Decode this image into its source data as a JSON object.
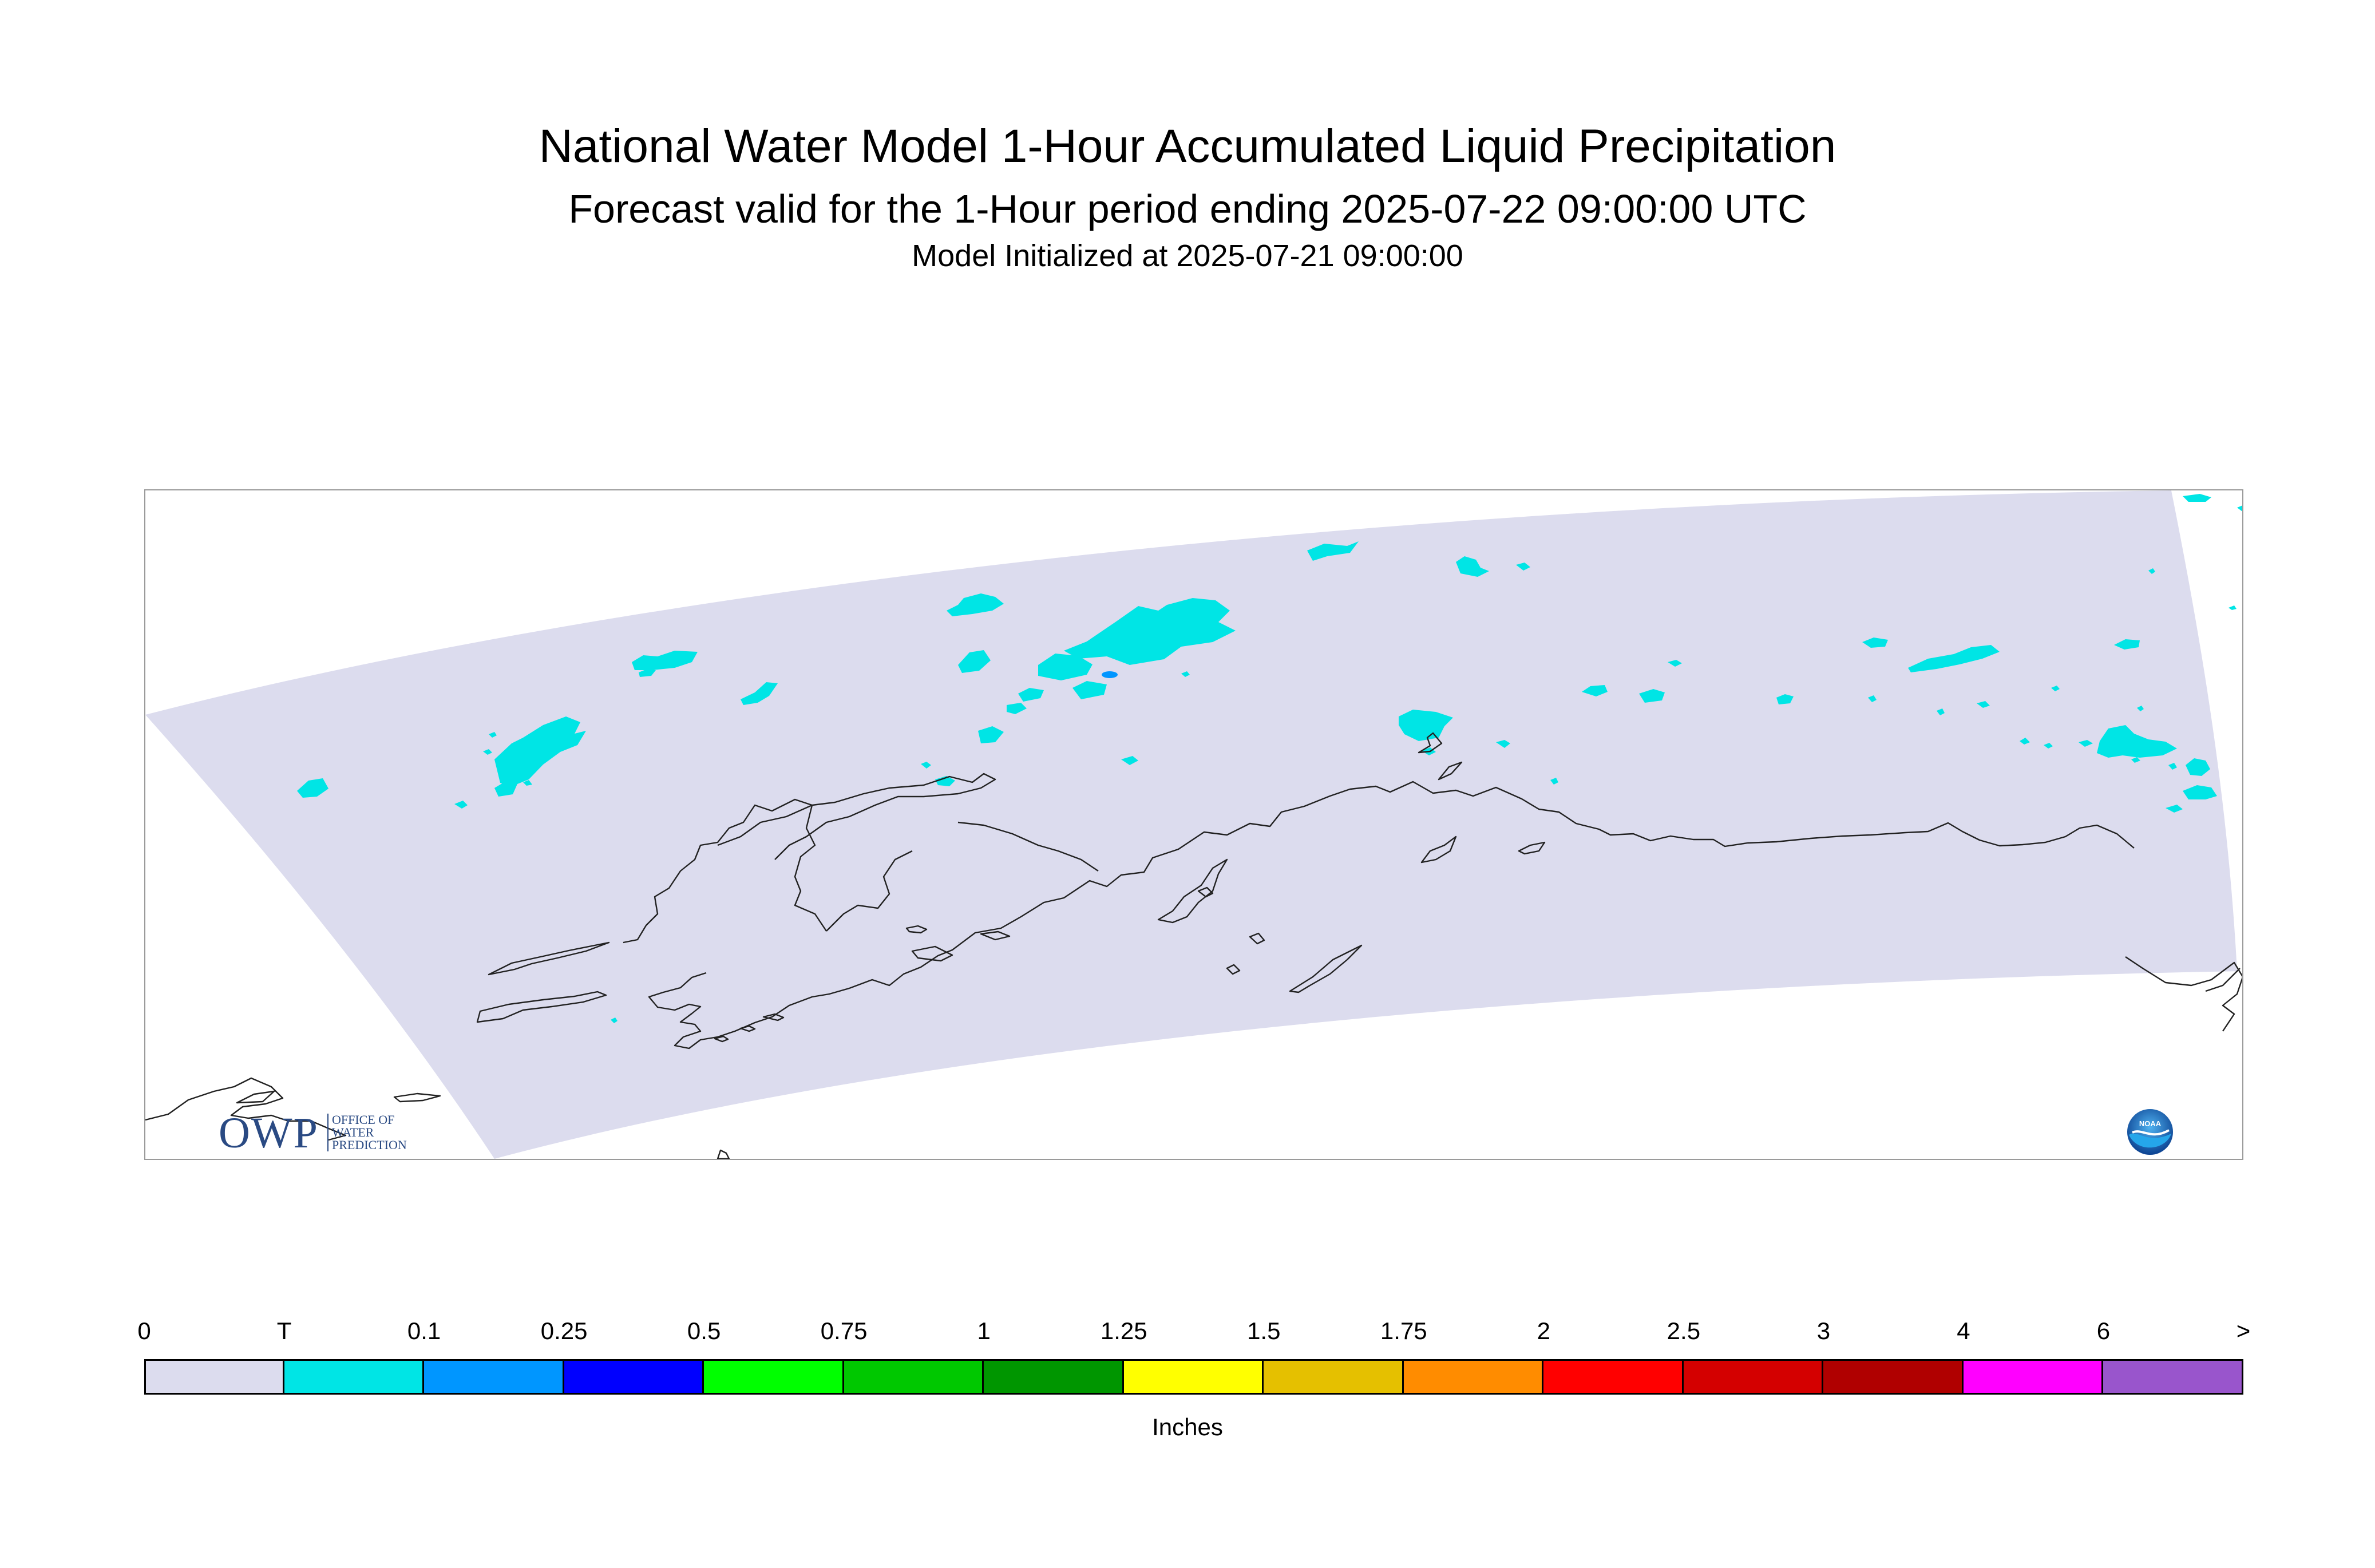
{
  "title": {
    "line1": "National Water Model 1-Hour Accumulated Liquid Precipitation",
    "line2": "Forecast valid for the 1-Hour period ending 2025-07-22 09:00:00 UTC",
    "line3": "Model Initialized at 2025-07-21 09:00:00"
  },
  "map": {
    "domain_fill_color": "#dcdcee",
    "coastline_color": "#222222",
    "precip_trace_color": "#00e5e5",
    "precip_01_color": "#0096ff"
  },
  "logos": {
    "owp": {
      "letters": "OWP",
      "line1": "OFFICE OF",
      "line2": "WATER",
      "line3": "PREDICTION"
    },
    "noaa": {
      "text": "NOAA",
      "icon": "noaa-logo-icon"
    }
  },
  "legend": {
    "unit_label": "Inches",
    "tick_labels": [
      "0",
      "T",
      "0.1",
      "0.25",
      "0.5",
      "0.75",
      "1",
      "1.25",
      "1.5",
      "1.75",
      "2",
      "2.5",
      "3",
      "4",
      "6",
      ">"
    ],
    "colors": [
      "#dcdcee",
      "#00e5e5",
      "#0096ff",
      "#0000ff",
      "#00ff00",
      "#00c800",
      "#009600",
      "#ffff00",
      "#e5c000",
      "#ff8c00",
      "#ff0000",
      "#d40000",
      "#b00000",
      "#ff00ff",
      "#9955cc"
    ]
  }
}
